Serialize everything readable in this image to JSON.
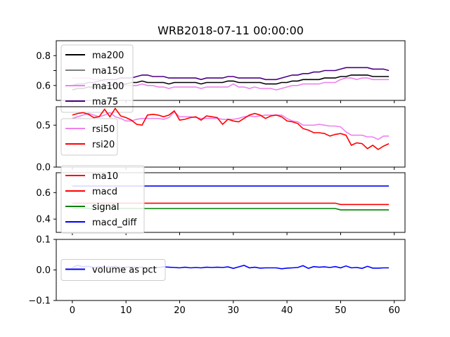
{
  "figure": {
    "title": "WRB2018-07-11 00:00:00"
  },
  "chart_data": [
    {
      "type": "line",
      "panel": "moving-averages",
      "ylim": [
        0.5,
        0.9
      ],
      "yticks": [
        0.6,
        0.7,
        0.8
      ],
      "ytick_labels": [
        "0.6",
        "",
        "0.8"
      ],
      "xlim": [
        -3,
        62
      ],
      "legend": "upper-left",
      "series": [
        {
          "name": "ma200",
          "color": "#000000",
          "values": [
            0.57,
            0.58,
            0.58,
            0.59,
            0.59,
            0.59,
            0.6,
            0.6,
            0.61,
            0.61,
            0.61,
            0.62,
            0.62,
            0.63,
            0.62,
            0.62,
            0.62,
            0.62,
            0.61,
            0.62,
            0.62,
            0.62,
            0.62,
            0.62,
            0.61,
            0.62,
            0.62,
            0.62,
            0.62,
            0.63,
            0.63,
            0.62,
            0.62,
            0.62,
            0.62,
            0.62,
            0.61,
            0.61,
            0.61,
            0.62,
            0.62,
            0.63,
            0.63,
            0.64,
            0.64,
            0.64,
            0.64,
            0.65,
            0.65,
            0.65,
            0.66,
            0.66,
            0.67,
            0.67,
            0.67,
            0.67,
            0.66,
            0.66,
            0.66,
            0.66
          ]
        },
        {
          "name": "ma150",
          "color": "#808080",
          "values": null
        },
        {
          "name": "ma100",
          "color": "#ee82ee",
          "values": [
            0.65,
            0.65,
            0.65,
            0.65,
            0.64,
            0.64,
            0.63,
            0.62,
            0.62,
            0.61,
            0.6,
            0.6,
            0.6,
            0.61,
            0.6,
            0.6,
            0.59,
            0.59,
            0.58,
            0.59,
            0.59,
            0.59,
            0.59,
            0.59,
            0.58,
            0.59,
            0.59,
            0.59,
            0.59,
            0.59,
            0.61,
            0.59,
            0.59,
            0.58,
            0.59,
            0.58,
            0.58,
            0.58,
            0.57,
            0.58,
            0.59,
            0.6,
            0.6,
            0.61,
            0.61,
            0.61,
            0.61,
            0.62,
            0.62,
            0.62,
            0.64,
            0.65,
            0.65,
            0.64,
            0.65,
            0.65,
            0.64,
            0.64,
            0.64,
            0.64
          ]
        },
        {
          "name": "ma75",
          "color": "#4b0082",
          "values": [
            0.6,
            0.61,
            0.61,
            0.62,
            0.62,
            0.63,
            0.64,
            0.64,
            0.64,
            0.65,
            0.65,
            0.65,
            0.66,
            0.67,
            0.67,
            0.66,
            0.66,
            0.66,
            0.65,
            0.65,
            0.65,
            0.65,
            0.65,
            0.65,
            0.64,
            0.65,
            0.65,
            0.65,
            0.65,
            0.66,
            0.66,
            0.65,
            0.65,
            0.65,
            0.65,
            0.65,
            0.64,
            0.64,
            0.64,
            0.65,
            0.66,
            0.67,
            0.67,
            0.68,
            0.68,
            0.69,
            0.69,
            0.7,
            0.7,
            0.7,
            0.71,
            0.72,
            0.72,
            0.72,
            0.72,
            0.72,
            0.71,
            0.71,
            0.71,
            0.7
          ]
        }
      ]
    },
    {
      "type": "line",
      "panel": "rsi",
      "ylim": [
        0.0,
        0.72
      ],
      "yticks": [
        0.0,
        0.5
      ],
      "ytick_labels": [
        "0.0",
        "0.5"
      ],
      "xlim": [
        -3,
        62
      ],
      "legend": "center-left",
      "series": [
        {
          "name": "rsi50",
          "color": "#ee82ee",
          "values": [
            0.58,
            0.6,
            0.62,
            0.64,
            0.62,
            0.6,
            0.62,
            0.65,
            0.6,
            0.58,
            0.55,
            0.55,
            0.57,
            0.58,
            0.58,
            0.58,
            0.58,
            0.57,
            0.59,
            0.66,
            0.6,
            0.6,
            0.6,
            0.59,
            0.58,
            0.58,
            0.58,
            0.58,
            0.57,
            0.57,
            0.57,
            0.58,
            0.6,
            0.61,
            0.6,
            0.61,
            0.62,
            0.62,
            0.62,
            0.62,
            0.58,
            0.55,
            0.54,
            0.5,
            0.5,
            0.5,
            0.51,
            0.5,
            0.49,
            0.49,
            0.48,
            0.42,
            0.38,
            0.38,
            0.38,
            0.36,
            0.36,
            0.33,
            0.37,
            0.37
          ]
        },
        {
          "name": "rsi20",
          "color": "#ff0000",
          "values": [
            0.62,
            0.64,
            0.65,
            0.63,
            0.59,
            0.6,
            0.69,
            0.6,
            0.7,
            0.61,
            0.59,
            0.56,
            0.51,
            0.5,
            0.62,
            0.63,
            0.62,
            0.6,
            0.62,
            0.67,
            0.56,
            0.57,
            0.59,
            0.6,
            0.56,
            0.61,
            0.6,
            0.59,
            0.51,
            0.57,
            0.55,
            0.54,
            0.58,
            0.62,
            0.64,
            0.62,
            0.58,
            0.61,
            0.62,
            0.6,
            0.55,
            0.54,
            0.52,
            0.46,
            0.44,
            0.41,
            0.41,
            0.4,
            0.37,
            0.39,
            0.4,
            0.38,
            0.26,
            0.29,
            0.28,
            0.22,
            0.26,
            0.21,
            0.25,
            0.28
          ]
        }
      ]
    },
    {
      "type": "line",
      "panel": "macd",
      "ylim": [
        0.3,
        0.75
      ],
      "yticks": [
        0.4,
        0.6
      ],
      "ytick_labels": [
        "0.4",
        "0.6"
      ],
      "xlim": [
        -3,
        62
      ],
      "legend": "upper-left",
      "series": [
        {
          "name": "ma10",
          "color": "#ff0000",
          "values": null
        },
        {
          "name": "macd",
          "color": "#ff0000",
          "values": [
            0.52,
            0.52,
            0.52,
            0.52,
            0.52,
            0.52,
            0.52,
            0.52,
            0.52,
            0.52,
            0.52,
            0.52,
            0.52,
            0.52,
            0.52,
            0.52,
            0.52,
            0.52,
            0.52,
            0.52,
            0.52,
            0.52,
            0.52,
            0.52,
            0.52,
            0.52,
            0.52,
            0.52,
            0.52,
            0.52,
            0.52,
            0.52,
            0.52,
            0.52,
            0.52,
            0.52,
            0.52,
            0.52,
            0.52,
            0.52,
            0.52,
            0.52,
            0.52,
            0.52,
            0.52,
            0.52,
            0.52,
            0.52,
            0.52,
            0.52,
            0.51,
            0.51,
            0.51,
            0.51,
            0.51,
            0.51,
            0.51,
            0.51,
            0.51,
            0.51
          ]
        },
        {
          "name": "signal",
          "color": "#008000",
          "values": [
            0.48,
            0.48,
            0.48,
            0.48,
            0.48,
            0.48,
            0.48,
            0.48,
            0.48,
            0.48,
            0.48,
            0.48,
            0.48,
            0.48,
            0.48,
            0.48,
            0.48,
            0.48,
            0.48,
            0.48,
            0.48,
            0.48,
            0.48,
            0.48,
            0.48,
            0.48,
            0.48,
            0.48,
            0.48,
            0.48,
            0.48,
            0.48,
            0.48,
            0.48,
            0.48,
            0.48,
            0.48,
            0.48,
            0.48,
            0.48,
            0.48,
            0.48,
            0.48,
            0.48,
            0.48,
            0.48,
            0.48,
            0.48,
            0.48,
            0.48,
            0.47,
            0.47,
            0.47,
            0.47,
            0.47,
            0.47,
            0.47,
            0.47,
            0.47,
            0.47
          ]
        },
        {
          "name": "macd_diff",
          "color": "#0000ff",
          "values": [
            0.65,
            0.65,
            0.65,
            0.65,
            0.65,
            0.65,
            0.65,
            0.65,
            0.65,
            0.65,
            0.65,
            0.65,
            0.65,
            0.65,
            0.65,
            0.65,
            0.65,
            0.65,
            0.65,
            0.65,
            0.65,
            0.65,
            0.65,
            0.65,
            0.65,
            0.65,
            0.65,
            0.65,
            0.65,
            0.65,
            0.65,
            0.65,
            0.65,
            0.65,
            0.65,
            0.65,
            0.65,
            0.65,
            0.65,
            0.65,
            0.65,
            0.65,
            0.65,
            0.65,
            0.65,
            0.65,
            0.65,
            0.65,
            0.65,
            0.65,
            0.65,
            0.65,
            0.65,
            0.65,
            0.65,
            0.65,
            0.65,
            0.65,
            0.65,
            0.65
          ]
        }
      ]
    },
    {
      "type": "line",
      "panel": "volume",
      "ylim": [
        -0.1,
        0.1
      ],
      "yticks": [
        -0.1,
        0.0,
        0.1
      ],
      "ytick_labels": [
        "−0.1",
        "0.0",
        "0.1"
      ],
      "xlim": [
        -3,
        62
      ],
      "xticks": [
        0,
        10,
        20,
        30,
        40,
        50,
        60
      ],
      "xtick_labels": [
        "0",
        "10",
        "20",
        "30",
        "40",
        "50",
        "60"
      ],
      "legend": "center-left",
      "series": [
        {
          "name": "volume as pct",
          "color": "#0000ff",
          "values": [
            0.008,
            0.015,
            0.01,
            0.012,
            0.008,
            0.01,
            0.009,
            0.01,
            0.012,
            0.008,
            0.009,
            0.01,
            0.008,
            0.009,
            0.007,
            0.009,
            0.008,
            0.01,
            0.009,
            0.008,
            0.007,
            0.009,
            0.007,
            0.008,
            0.007,
            0.009,
            0.008,
            0.009,
            0.008,
            0.01,
            0.005,
            0.01,
            0.015,
            0.007,
            0.009,
            0.006,
            0.007,
            0.007,
            0.007,
            0.004,
            0.006,
            0.007,
            0.008,
            0.014,
            0.005,
            0.011,
            0.009,
            0.01,
            0.008,
            0.011,
            0.007,
            0.013,
            0.007,
            0.008,
            0.005,
            0.012,
            0.006,
            0.006,
            0.007,
            0.007
          ]
        }
      ]
    }
  ]
}
